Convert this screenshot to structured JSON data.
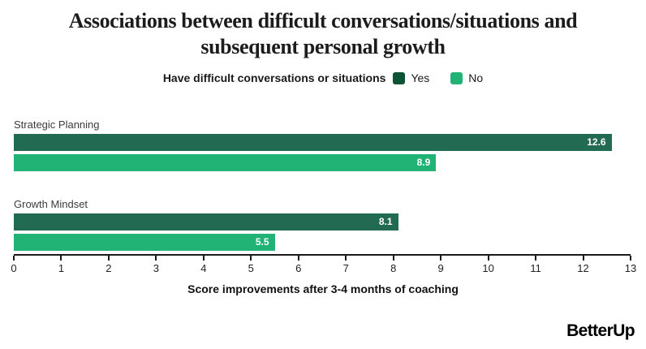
{
  "title": {
    "line1": "Associations between difficult conversations/situations and",
    "line2": "subsequent personal growth"
  },
  "legend": {
    "heading": "Have difficult conversations or situations",
    "items": [
      {
        "label": "Yes",
        "color": "#0d5335"
      },
      {
        "label": "No",
        "color": "#21b376"
      }
    ]
  },
  "chart_data": {
    "type": "bar",
    "orientation": "horizontal",
    "title": "Associations between difficult conversations/situations and subsequent personal growth",
    "categories": [
      "Strategic Planning",
      "Growth Mindset"
    ],
    "series": [
      {
        "name": "Yes",
        "color": "#226b52",
        "values": [
          12.6,
          8.1
        ]
      },
      {
        "name": "No",
        "color": "#21b376",
        "values": [
          8.9,
          5.5
        ]
      }
    ],
    "xlabel": "Score improvements after 3-4 months of coaching",
    "ylabel": "",
    "xlim": [
      0,
      13
    ],
    "xticks": [
      0,
      1,
      2,
      3,
      4,
      5,
      6,
      7,
      8,
      9,
      10,
      11,
      12,
      13
    ],
    "grid": false,
    "legend_position": "top",
    "value_labels": "inside-end"
  },
  "footer": {
    "logo_text": "BetterUp"
  }
}
